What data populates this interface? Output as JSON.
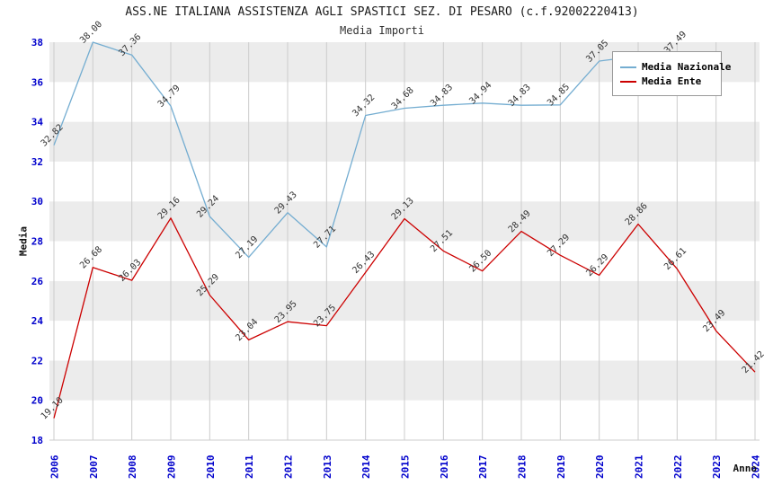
{
  "title": "ASS.NE ITALIANA ASSISTENZA AGLI SPASTICI SEZ. DI PESARO (c.f.92002220413)",
  "subtitle": "Media Importi",
  "chart_data": {
    "type": "line",
    "x": [
      2006,
      2007,
      2008,
      2009,
      2010,
      2011,
      2012,
      2013,
      2014,
      2015,
      2016,
      2017,
      2018,
      2019,
      2020,
      2021,
      2022,
      2023,
      2024
    ],
    "xlabel": "Anno",
    "ylabel": "Media",
    "ylim": [
      18,
      38
    ],
    "ytick_step": 2,
    "yticks": [
      18,
      20,
      22,
      24,
      26,
      28,
      30,
      32,
      34,
      36,
      38
    ],
    "grid": "vertical year gridlines + alternating horizontal bands",
    "legend_position": "top-right",
    "series": [
      {
        "name": "Media Nazionale",
        "color": "#74add1",
        "values": [
          32.82,
          38.0,
          37.36,
          34.79,
          29.24,
          27.19,
          29.43,
          27.71,
          34.32,
          34.68,
          34.83,
          34.94,
          34.83,
          34.85,
          37.05,
          37.3,
          37.49,
          null,
          null
        ],
        "labels": [
          "32.82",
          "38.00",
          "37.36",
          "34.79",
          "29.24",
          "27.19",
          "29.43",
          "27.71",
          "34.32",
          "34.68",
          "34.83",
          "34.94",
          "34.83",
          "34.85",
          "37.05",
          null,
          "37.49",
          null,
          null
        ]
      },
      {
        "name": "Media Ente",
        "color": "#cc0000",
        "values": [
          19.1,
          26.68,
          26.03,
          29.16,
          25.29,
          23.04,
          23.95,
          23.75,
          26.43,
          29.13,
          27.51,
          26.5,
          28.49,
          27.29,
          26.29,
          28.86,
          26.61,
          23.49,
          21.42
        ],
        "labels": [
          "19.10",
          "26.68",
          "26.03",
          "29.16",
          "25.29",
          "23.04",
          "23.95",
          "23.75",
          "26.43",
          "29.13",
          "27.51",
          "26.50",
          "28.49",
          "27.29",
          "26.29",
          "28.86",
          "26.61",
          "23.49",
          "21.42"
        ]
      }
    ],
    "colors": {
      "band_gray": "#ececec",
      "band_white": "#ffffff",
      "gridline": "#cccccc",
      "tick_label": "#0000cc",
      "point_label": "#333333"
    }
  }
}
